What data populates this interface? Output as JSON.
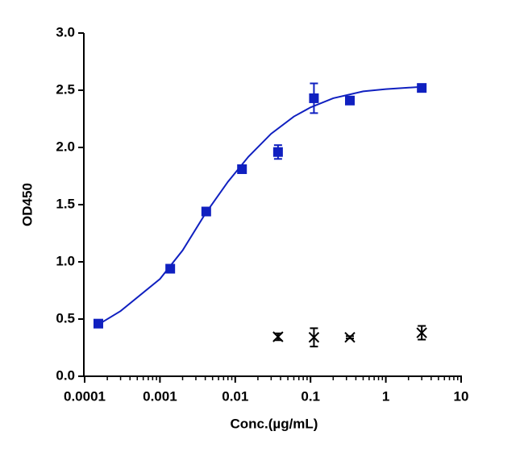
{
  "chart_data": {
    "type": "scatter",
    "x_label": "Conc.(µg/mL)",
    "y_label": "OD450",
    "xscale": "log",
    "xlim": [
      0.0001,
      10
    ],
    "xticks": [
      0.0001,
      0.001,
      0.01,
      0.1,
      1,
      10
    ],
    "ylim": [
      0,
      3
    ],
    "yticks": [
      {
        "value": 0,
        "label": "0.0"
      },
      {
        "value": 0.5,
        "label": "0.5"
      },
      {
        "value": 1,
        "label": "1.0"
      },
      {
        "value": 1.5,
        "label": "1.5"
      },
      {
        "value": 2,
        "label": "2.0"
      },
      {
        "value": 2.5,
        "label": "2.5"
      },
      {
        "value": 3,
        "label": "3.0"
      }
    ],
    "series": [
      {
        "color": "#1020c0",
        "marker": "square",
        "x": [
          0.000152,
          0.00137,
          0.00412,
          0.0123,
          0.037,
          0.111,
          0.333,
          3
        ],
        "values": [
          0.46,
          0.94,
          1.44,
          1.81,
          1.96,
          2.43,
          2.41,
          2.52
        ],
        "errors": [
          0.01,
          0.01,
          0.01,
          0.01,
          0.06,
          0.13,
          0.02,
          0.01
        ]
      },
      {
        "color": "#000000",
        "marker": "x",
        "x": [
          0.037,
          0.111,
          0.333,
          3
        ],
        "values": [
          0.345,
          0.34,
          0.34,
          0.38
        ],
        "errors": [
          0.03,
          0.08,
          0.01,
          0.06
        ]
      },
      {
        "color": "#1020c0",
        "marker": "line",
        "x": [
          0.00015,
          0.0003,
          0.001,
          0.002,
          0.004,
          0.008,
          0.015,
          0.03,
          0.06,
          0.1,
          0.2,
          0.5,
          1,
          3
        ],
        "values": [
          0.45,
          0.57,
          0.85,
          1.1,
          1.42,
          1.7,
          1.92,
          2.12,
          2.27,
          2.35,
          2.43,
          2.49,
          2.51,
          2.53
        ]
      }
    ]
  }
}
